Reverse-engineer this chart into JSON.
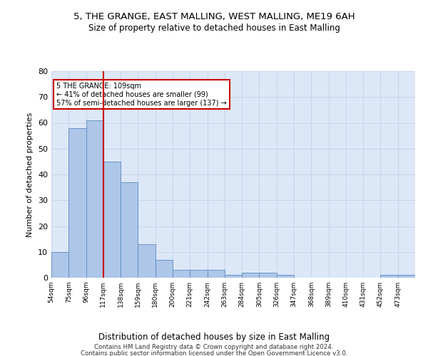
{
  "title1": "5, THE GRANGE, EAST MALLING, WEST MALLING, ME19 6AH",
  "title2": "Size of property relative to detached houses in East Malling",
  "xlabel": "Distribution of detached houses by size in East Malling",
  "ylabel": "Number of detached properties",
  "bar_labels": [
    "54sqm",
    "75sqm",
    "96sqm",
    "117sqm",
    "138sqm",
    "159sqm",
    "180sqm",
    "200sqm",
    "221sqm",
    "242sqm",
    "263sqm",
    "284sqm",
    "305sqm",
    "326sqm",
    "347sqm",
    "368sqm",
    "389sqm",
    "410sqm",
    "431sqm",
    "452sqm",
    "473sqm"
  ],
  "bar_values": [
    10,
    58,
    61,
    45,
    37,
    13,
    7,
    3,
    3,
    3,
    1,
    2,
    2,
    1,
    0,
    0,
    0,
    0,
    0,
    1,
    1
  ],
  "bar_color": "#aec6e8",
  "bar_edge_color": "#5a8abf",
  "grid_color": "#c8d4e8",
  "bg_color": "#dce8f8",
  "annotation_text": "5 THE GRANGE: 109sqm\n← 41% of detached houses are smaller (99)\n57% of semi-detached houses are larger (137) →",
  "annotation_box_color": "#ffffff",
  "annotation_border_color": "#cc0000",
  "property_line_x": 3.0,
  "ylim": [
    0,
    80
  ],
  "yticks": [
    0,
    10,
    20,
    30,
    40,
    50,
    60,
    70,
    80
  ],
  "footer1": "Contains HM Land Registry data © Crown copyright and database right 2024.",
  "footer2": "Contains public sector information licensed under the Open Government Licence v3.0."
}
